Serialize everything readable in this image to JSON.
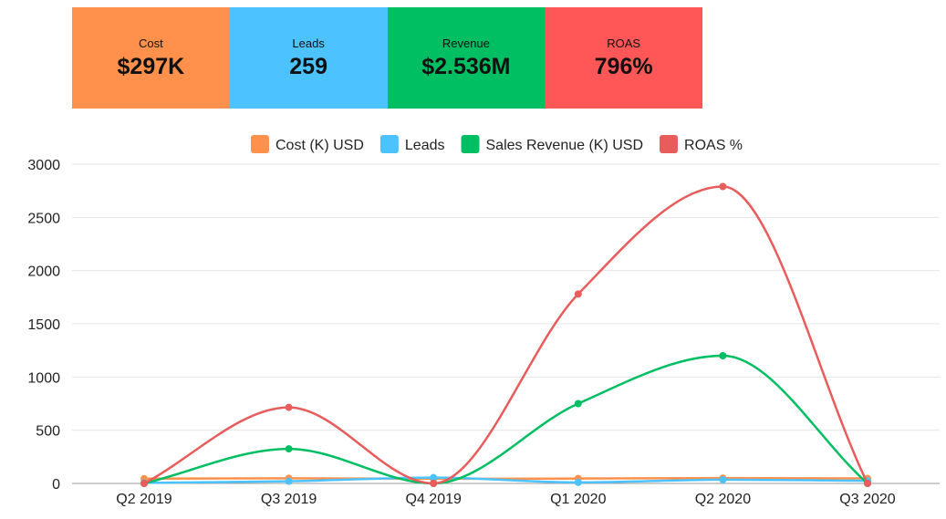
{
  "kpis": [
    {
      "label": "Cost",
      "value": "$297K",
      "color": "#FF914D"
    },
    {
      "label": "Leads",
      "value": "259",
      "color": "#4CC3FF"
    },
    {
      "label": "Revenue",
      "value": "$2.536M",
      "color": "#00BF63"
    },
    {
      "label": "ROAS",
      "value": "796%",
      "color": "#FF5757"
    }
  ],
  "chart_data": {
    "type": "line",
    "title": "",
    "xlabel": "",
    "ylabel": "",
    "categories": [
      "Q2 2019",
      "Q3 2019",
      "Q4 2019",
      "Q1 2020",
      "Q2 2020",
      "Q3 2020"
    ],
    "ylim": [
      0,
      3000
    ],
    "yticks": [
      0,
      500,
      1000,
      1500,
      2000,
      2500,
      3000
    ],
    "grid": true,
    "legend_position": "top-center",
    "series": [
      {
        "name": "Cost (K) USD",
        "color": "#FF914D",
        "values": [
          45,
          48,
          44,
          46,
          50,
          47
        ]
      },
      {
        "name": "Leads",
        "color": "#4CC3FF",
        "values": [
          5,
          20,
          55,
          10,
          35,
          25
        ]
      },
      {
        "name": "Sales Revenue (K) USD",
        "color": "#00BF63",
        "values": [
          0,
          325,
          0,
          750,
          1200,
          0
        ]
      },
      {
        "name": "ROAS %",
        "color": "#E85C5C",
        "values": [
          0,
          715,
          0,
          1780,
          2790,
          0
        ]
      }
    ]
  }
}
